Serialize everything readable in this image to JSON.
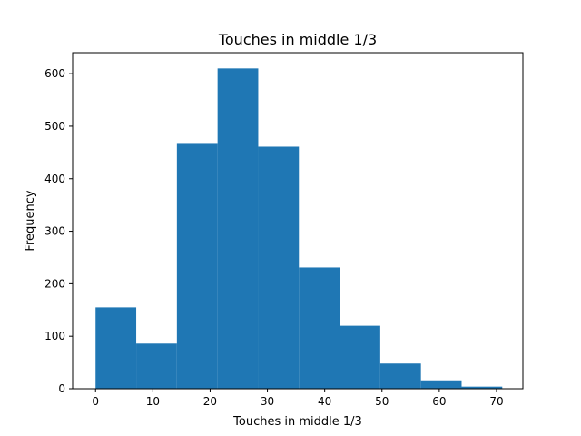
{
  "chart_data": {
    "type": "bar",
    "title": "Touches in middle 1/3",
    "xlabel": "Touches in middle 1/3",
    "ylabel": "Frequency",
    "bin_edges": [
      0,
      7.1,
      14.2,
      21.3,
      28.4,
      35.5,
      42.6,
      49.7,
      56.8,
      63.9,
      71
    ],
    "values": [
      155,
      86,
      468,
      610,
      461,
      231,
      120,
      48,
      16,
      4
    ],
    "xlim": [
      -4,
      74.6
    ],
    "ylim": [
      0,
      640
    ],
    "xticks": [
      "0",
      "10",
      "20",
      "30",
      "40",
      "50",
      "60",
      "70"
    ],
    "yticks": [
      "0",
      "100",
      "200",
      "300",
      "400",
      "500",
      "600"
    ],
    "bar_color": "#1f77b4",
    "grid": false
  }
}
